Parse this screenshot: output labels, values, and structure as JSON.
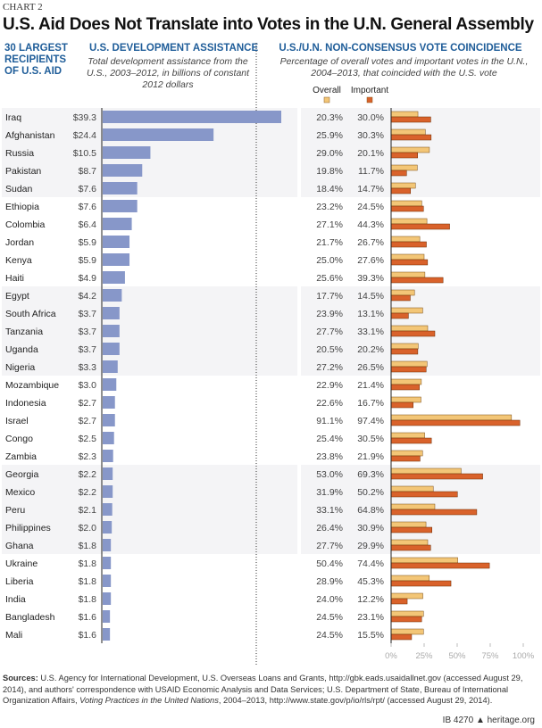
{
  "chart_label": "CHART 2",
  "title": "U.S. Aid Does Not Translate into Votes in the U.N. General Assembly",
  "footer": {
    "id": "IB 4270",
    "site": "heritage.org"
  },
  "sources": {
    "label": "Sources:",
    "text_1": " U.S. Agency for International Development, U.S. Overseas Loans and Grants, http://gbk.eads.usaidallnet.gov (accessed August 29, 2014), and authors' correspondence with USAID Economic Analysis and Data Services; U.S. Department of State, Bureau of International Organization Affairs, ",
    "italic": "Voting Practices in the United Nations",
    "text_2": ", 2004–2013, http://www.state.gov/p/io/rls/rpt/ (accessed August 29, 2014)."
  },
  "chart_data": [
    {
      "type": "bar",
      "orientation": "horizontal",
      "column_header": "30 LARGEST RECIPIENTS OF U.S. AID",
      "title": "U.S. DEVELOPMENT ASSISTANCE",
      "subtitle": "Total development assistance from the U.S., 2003–2012, in billions of constant 2012 dollars",
      "color": "#8797c9",
      "categories": [
        "Iraq",
        "Afghanistan",
        "Russia",
        "Pakistan",
        "Sudan",
        "Ethiopia",
        "Colombia",
        "Jordan",
        "Kenya",
        "Haiti",
        "Egypt",
        "South Africa",
        "Tanzania",
        "Uganda",
        "Nigeria",
        "Mozambique",
        "Indonesia",
        "Israel",
        "Congo",
        "Zambia",
        "Georgia",
        "Mexico",
        "Peru",
        "Philippines",
        "Ghana",
        "Ukraine",
        "Liberia",
        "India",
        "Bangladesh",
        "Mali"
      ],
      "values": [
        39.3,
        24.4,
        10.5,
        8.7,
        7.6,
        7.6,
        6.4,
        5.9,
        5.9,
        4.9,
        4.2,
        3.7,
        3.7,
        3.7,
        3.3,
        3.0,
        2.7,
        2.7,
        2.5,
        2.3,
        2.2,
        2.2,
        2.1,
        2.0,
        1.8,
        1.8,
        1.8,
        1.8,
        1.6,
        1.6
      ],
      "value_prefix": "$"
    },
    {
      "type": "bar",
      "orientation": "horizontal",
      "title": "U.S./U.N. NON-CONSENSUS VOTE COINCIDENCE",
      "subtitle": "Percentage of overall votes and important votes in the U.N., 2004–2013, that coincided with the U.S. vote",
      "legend": "top",
      "xlim": [
        0,
        100
      ],
      "x_ticks": [
        "0%",
        "25%",
        "50%",
        "75%",
        "100%"
      ],
      "series": [
        {
          "name": "Overall",
          "color": "#f3c677",
          "values": [
            20.3,
            25.9,
            29.0,
            19.8,
            18.4,
            23.2,
            27.1,
            21.7,
            25.0,
            25.6,
            17.7,
            23.9,
            27.7,
            20.5,
            27.2,
            22.9,
            22.6,
            91.1,
            25.4,
            23.8,
            53.0,
            31.9,
            33.1,
            26.4,
            27.7,
            50.4,
            28.9,
            24.0,
            24.5,
            24.5
          ]
        },
        {
          "name": "Important",
          "color": "#d9622b",
          "values": [
            30.0,
            30.3,
            20.1,
            11.7,
            14.7,
            24.5,
            44.3,
            26.7,
            27.6,
            39.3,
            14.5,
            13.1,
            33.1,
            20.2,
            26.5,
            21.4,
            16.7,
            97.4,
            30.5,
            21.9,
            69.3,
            50.2,
            64.8,
            30.9,
            29.9,
            74.4,
            45.3,
            12.2,
            23.1,
            15.5
          ]
        }
      ]
    }
  ]
}
